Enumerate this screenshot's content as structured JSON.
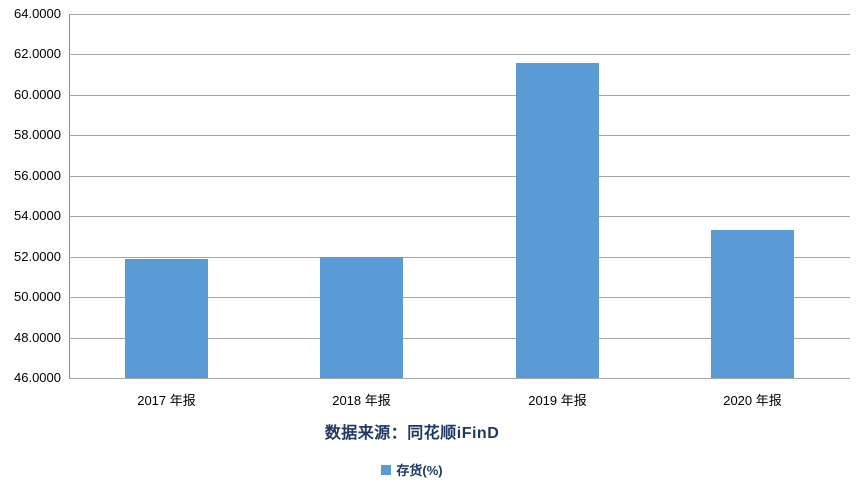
{
  "chart_data": {
    "type": "bar",
    "categories": [
      "2017 年报",
      "2018 年报",
      "2019 年报",
      "2020 年报"
    ],
    "series": [
      {
        "name": "存货(%)",
        "values": [
          51.9,
          52.0,
          61.6,
          53.3
        ]
      }
    ],
    "ylim": [
      46,
      64
    ],
    "y_tick_step": 2,
    "y_tick_labels": [
      "64.0000",
      "62.0000",
      "60.0000",
      "58.0000",
      "56.0000",
      "54.0000",
      "52.0000",
      "50.0000",
      "48.0000",
      "46.0000"
    ],
    "grid": true,
    "legend_position": "bottom",
    "legend_label": "存货(%)",
    "source_note": "数据来源：同花顺iFinD",
    "colors": {
      "bar": "#5B9BD5",
      "gridline": "#A6A6A6",
      "axis_line": "#8C8C8C",
      "tick_text": "#000000",
      "note_text": "#1F3864"
    }
  }
}
